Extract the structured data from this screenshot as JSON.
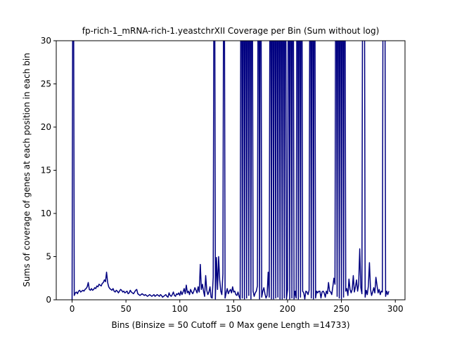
{
  "chart_data": {
    "type": "line",
    "title": "fp-rich-1_mRNA-rich-1.yeastchrXII Coverage per Bin (Sum without log)",
    "x_label": "Bins  (Binsize = 50 Cutoff = 0 Max gene Length =14733)",
    "y_label": "Sums of coverage of genes at each position in each bin",
    "color": "#000080",
    "xlim": [
      -14.7,
      309
    ],
    "ylim": [
      0,
      30
    ],
    "xticks": [
      0,
      50,
      100,
      150,
      200,
      250,
      300
    ],
    "yticks": [
      0,
      5,
      10,
      15,
      20,
      25,
      30
    ],
    "x": [
      0,
      1,
      2,
      3,
      4,
      5,
      6,
      7,
      8,
      9,
      10,
      11,
      12,
      13,
      14,
      15,
      16,
      17,
      18,
      19,
      20,
      21,
      22,
      23,
      24,
      25,
      26,
      27,
      28,
      29,
      30,
      31,
      32,
      33,
      34,
      35,
      36,
      37,
      38,
      39,
      40,
      41,
      42,
      43,
      44,
      45,
      46,
      47,
      48,
      49,
      50,
      51,
      52,
      53,
      54,
      55,
      56,
      57,
      58,
      59,
      60,
      61,
      62,
      63,
      64,
      65,
      66,
      67,
      68,
      69,
      70,
      71,
      72,
      73,
      74,
      75,
      76,
      77,
      78,
      79,
      80,
      81,
      82,
      83,
      84,
      85,
      86,
      87,
      88,
      89,
      90,
      91,
      92,
      93,
      94,
      95,
      96,
      97,
      98,
      99,
      100,
      101,
      102,
      103,
      104,
      105,
      106,
      107,
      108,
      109,
      110,
      111,
      112,
      113,
      114,
      115,
      116,
      117,
      118,
      119,
      120,
      121,
      122,
      123,
      124,
      125,
      126,
      127,
      128,
      129,
      130,
      131,
      132,
      133,
      134,
      135,
      136,
      137,
      138,
      139,
      140,
      141,
      142,
      143,
      144,
      145,
      146,
      147,
      148,
      149,
      150,
      151,
      152,
      153,
      154,
      155,
      156,
      157,
      158,
      159,
      160,
      161,
      162,
      163,
      164,
      165,
      166,
      167,
      168,
      169,
      170,
      171,
      172,
      173,
      174,
      175,
      176,
      177,
      178,
      179,
      180,
      181,
      182,
      183,
      184,
      185,
      186,
      187,
      188,
      189,
      190,
      191,
      192,
      193,
      194,
      195,
      196,
      197,
      198,
      199,
      200,
      201,
      202,
      203,
      204,
      205,
      206,
      207,
      208,
      209,
      210,
      211,
      212,
      213,
      214,
      215,
      216,
      217,
      218,
      219,
      220,
      221,
      222,
      223,
      224,
      225,
      226,
      227,
      228,
      229,
      230,
      231,
      232,
      233,
      234,
      235,
      236,
      237,
      238,
      239,
      240,
      241,
      242,
      243,
      244,
      245,
      246,
      247,
      248,
      249,
      250,
      251,
      252,
      253,
      254,
      255,
      256,
      257,
      258,
      259,
      260,
      261,
      262,
      263,
      264,
      265,
      266,
      267,
      268,
      269,
      270,
      271,
      272,
      273,
      274,
      275,
      276,
      277,
      278,
      279,
      280,
      281,
      282,
      283,
      284,
      285,
      286,
      287,
      288,
      289,
      290,
      291,
      292,
      293,
      294
    ],
    "values": [
      0,
      60,
      0.5,
      0.8,
      0.9,
      0.7,
      1,
      1.1,
      0.9,
      1,
      1.1,
      1,
      1.2,
      1.3,
      1.5,
      2,
      1.2,
      1.1,
      1.3,
      1.1,
      1.2,
      1.4,
      1.3,
      1.6,
      1.5,
      1.8,
      1.7,
      1.6,
      1.9,
      2,
      2.3,
      2.1,
      3.2,
      2,
      1.5,
      1.3,
      1.2,
      1.1,
      1.3,
      1,
      0.9,
      1.1,
      1,
      0.8,
      1,
      1.2,
      1.1,
      0.9,
      1,
      0.8,
      0.9,
      1,
      0.7,
      0.8,
      1.1,
      0.9,
      0.8,
      0.7,
      0.9,
      1.1,
      1.2,
      0.7,
      0.6,
      0.5,
      0.6,
      0.7,
      0.6,
      0.5,
      0.6,
      0.5,
      0.4,
      0.5,
      0.6,
      0.5,
      0.4,
      0.5,
      0.6,
      0.4,
      0.5,
      0.6,
      0.5,
      0.4,
      0.6,
      0.5,
      0.3,
      0.4,
      0.5,
      0.6,
      0.4,
      0.3,
      0.8,
      0.5,
      0.4,
      0.6,
      0.9,
      0.5,
      0.4,
      0.7,
      0.6,
      0.8,
      0.5,
      1,
      0.6,
      0.9,
      1.3,
      0.7,
      1.7,
      0.8,
      1,
      0.6,
      1.2,
      0.9,
      0.7,
      1,
      1.4,
      1.1,
      0.8,
      1.5,
      0.9,
      4.1,
      1.2,
      1.8,
      1,
      0.4,
      2.8,
      1.1,
      0.6,
      0.9,
      1.5,
      0.3,
      0.2,
      2.6,
      60,
      0.1,
      4.9,
      1.2,
      5,
      2.3,
      1,
      0.6,
      3,
      60,
      0.2,
      0.8,
      1.3,
      0.7,
      1,
      1.2,
      0.8,
      1.5,
      0.9,
      1,
      0.6,
      0.5,
      0.9,
      0.4,
      0.1,
      60,
      0.2,
      60,
      0.1,
      60,
      0.2,
      60,
      0.5,
      60,
      0.1,
      60,
      1,
      0.4,
      0.8,
      1,
      1.6,
      60,
      0.1,
      60,
      0.3,
      1,
      1.4,
      0.7,
      0.2,
      0.5,
      3.2,
      0.3,
      60,
      0.1,
      60,
      0.1,
      60,
      0.2,
      60,
      0.3,
      60,
      0.1,
      60,
      0.1,
      60,
      0.2,
      60,
      0.1,
      1.2,
      60,
      0.1,
      60,
      0.2,
      60,
      0.1,
      1,
      0.2,
      60,
      0.1,
      60,
      0.3,
      60,
      1,
      0.8,
      0.1,
      1,
      0.9,
      0.6,
      1.1,
      60,
      0.2,
      60,
      0.1,
      60,
      0.2,
      1,
      0.8,
      1,
      1,
      0.2,
      0.9,
      1,
      0.8,
      0.3,
      1,
      0.7,
      2,
      1,
      0.9,
      0.6,
      1.5,
      2.5,
      1.8,
      60,
      0.4,
      60,
      0.2,
      60,
      0.1,
      60,
      0.3,
      60,
      1,
      1.3,
      0.5,
      2.4,
      1.2,
      0.8,
      1.2,
      2.8,
      0.9,
      1.5,
      2.3,
      1,
      1.8,
      5.9,
      1.4,
      0.7,
      60,
      60,
      0.3,
      1.1,
      0.6,
      1.6,
      4.3,
      1.2,
      0.5,
      0.9,
      1.4,
      0.8,
      2.6,
      1.7,
      0.8,
      1.2,
      0.6,
      1,
      0.9,
      60,
      60,
      0.4,
      1,
      0.6,
      1
    ]
  }
}
